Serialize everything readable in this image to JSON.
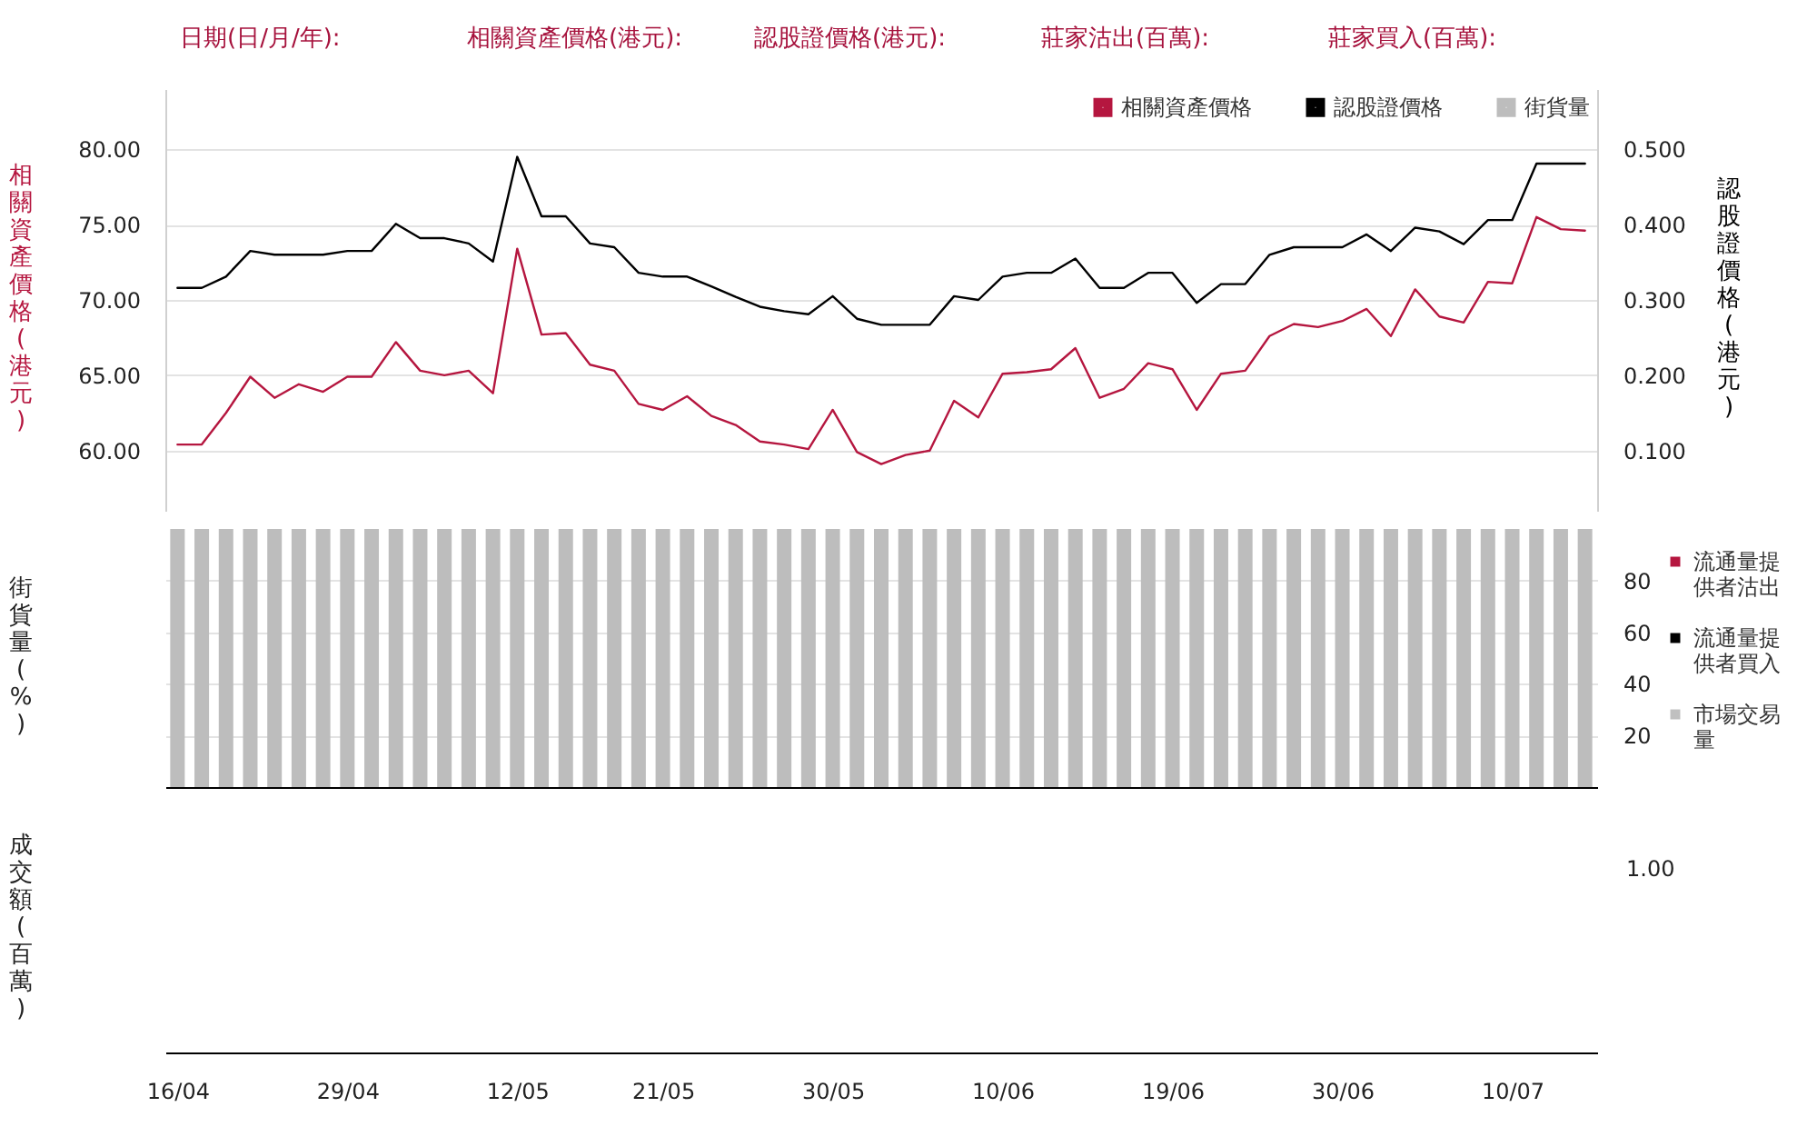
{
  "chart_data": [
    {
      "type": "line",
      "annotations": [
        "日期(日/月/年):",
        "相關資產價格(港元):",
        "認股證價格(港元):",
        "莊家沽出(百萬):",
        "莊家買入(百萬):"
      ],
      "categories": [
        null,
        null,
        null,
        null,
        null,
        null,
        null,
        null,
        null,
        null,
        null,
        null,
        null,
        null,
        null,
        null,
        null,
        null,
        null,
        null,
        null,
        null,
        null,
        null,
        null,
        null,
        null,
        null,
        null,
        null,
        null,
        null,
        null,
        null,
        null,
        null,
        null,
        null,
        null,
        null,
        null,
        null,
        null,
        null,
        null,
        null,
        null,
        null,
        null,
        null,
        null,
        null,
        null,
        null,
        null,
        null,
        null,
        null,
        null
      ],
      "series": [
        {
          "name": "相關資產價格",
          "color": "#b5163f",
          "values": [
            60.4,
            60.4,
            62.5,
            64.9,
            63.5,
            64.4,
            63.9,
            64.9,
            64.9,
            67.2,
            65.3,
            65.0,
            65.3,
            63.8,
            73.4,
            67.7,
            67.8,
            65.7,
            65.3,
            63.1,
            62.7,
            63.6,
            62.3,
            61.7,
            60.6,
            60.4,
            60.1,
            62.7,
            59.9,
            59.1,
            59.7,
            60.0,
            63.3,
            62.2,
            65.1,
            65.2,
            65.4,
            66.8,
            63.5,
            64.1,
            65.8,
            65.4,
            62.7,
            65.1,
            65.3,
            67.6,
            68.4,
            68.2,
            68.6,
            69.4,
            67.6,
            70.7,
            68.9,
            68.5,
            71.2,
            71.1,
            75.5,
            74.7,
            74.6
          ]
        },
        {
          "name": "認股證價格",
          "color": "#000000",
          "axis": "y2",
          "values": [
            0.316,
            0.316,
            0.331,
            0.365,
            0.36,
            0.36,
            0.36,
            0.365,
            0.365,
            0.401,
            0.382,
            0.382,
            0.375,
            0.351,
            0.49,
            0.411,
            0.411,
            0.375,
            0.37,
            0.336,
            0.331,
            0.331,
            0.318,
            0.304,
            0.291,
            0.285,
            0.281,
            0.305,
            0.275,
            0.267,
            0.267,
            0.267,
            0.305,
            0.3,
            0.331,
            0.336,
            0.336,
            0.355,
            0.316,
            0.316,
            0.336,
            0.336,
            0.296,
            0.321,
            0.321,
            0.36,
            0.37,
            0.37,
            0.37,
            0.387,
            0.365,
            0.396,
            0.391,
            0.374,
            0.406,
            0.406,
            0.481,
            0.481,
            0.481
          ]
        }
      ],
      "ylim": [
        56,
        84
      ],
      "yticks": [
        {
          "value": 60,
          "label": "60.00"
        },
        {
          "value": 65,
          "label": "65.00"
        },
        {
          "value": 70,
          "label": "70.00"
        },
        {
          "value": 75,
          "label": "75.00"
        },
        {
          "value": 80,
          "label": "80.00"
        }
      ],
      "y2lim": [
        0.02,
        0.58
      ],
      "y2ticks": [
        {
          "value": 0.1,
          "label": "0.100"
        },
        {
          "value": 0.2,
          "label": "0.200"
        },
        {
          "value": 0.3,
          "label": "0.300"
        },
        {
          "value": 0.4,
          "label": "0.400"
        },
        {
          "value": 0.5,
          "label": "0.500"
        }
      ],
      "ylabel": "相關資產價格(港元)",
      "y2label": "認股證價格(港元)",
      "grid": "y",
      "legend": "top right",
      "tick_labels": "y"
    },
    {
      "type": "bar",
      "categories": [
        null,
        null,
        null,
        null,
        null,
        null,
        null,
        null,
        null,
        null,
        null,
        null,
        null,
        null,
        null,
        null,
        null,
        null,
        null,
        null,
        null,
        null,
        null,
        null,
        null,
        null,
        null,
        null,
        null,
        null,
        null,
        null,
        null,
        null,
        null,
        null,
        null,
        null,
        null,
        null,
        null,
        null,
        null,
        null,
        null,
        null,
        null,
        null,
        null,
        null,
        null,
        null,
        null,
        null,
        null,
        null,
        null,
        null,
        null
      ],
      "series": [
        {
          "name": "街貨量",
          "color": "#bdbdbd",
          "values": [
            100,
            100,
            100,
            100,
            100,
            100,
            100,
            100,
            100,
            100,
            100,
            100,
            100,
            100,
            100,
            100,
            100,
            100,
            100,
            100,
            100,
            100,
            100,
            100,
            100,
            100,
            100,
            100,
            100,
            100,
            100,
            100,
            100,
            100,
            100,
            100,
            100,
            100,
            100,
            100,
            100,
            100,
            100,
            100,
            100,
            100,
            100,
            100,
            100,
            100,
            100,
            100,
            100,
            100,
            100,
            100,
            100,
            100,
            100
          ]
        }
      ],
      "ylim": [
        0,
        100
      ],
      "yticks": [
        20,
        40,
        60,
        80
      ],
      "ylabel": "街貨量(%)",
      "grid": "y",
      "tick_labels": "y"
    },
    {
      "type": "other",
      "categories": [
        "16/04",
        null,
        null,
        null,
        null,
        null,
        null,
        "29/04",
        null,
        null,
        null,
        null,
        null,
        null,
        "12/05",
        null,
        null,
        null,
        null,
        null,
        "21/05",
        null,
        null,
        null,
        null,
        null,
        null,
        "30/05",
        null,
        null,
        null,
        null,
        null,
        null,
        "10/06",
        null,
        null,
        null,
        null,
        null,
        null,
        "19/06",
        null,
        null,
        null,
        null,
        null,
        null,
        "30/06",
        null,
        null,
        null,
        null,
        null,
        null,
        "10/07",
        null,
        null,
        null
      ],
      "series": [
        {
          "name": "流通量提供者沽出",
          "color": "#b5163f",
          "values": [
            null,
            null,
            null,
            null,
            null,
            null,
            null,
            null,
            null,
            null,
            null,
            null,
            null,
            null,
            null,
            null,
            null,
            null,
            null,
            null,
            null,
            null,
            null,
            null,
            null,
            null,
            null,
            null,
            null,
            null,
            null,
            null,
            null,
            null,
            null,
            null,
            null,
            null,
            null,
            null,
            null,
            null,
            null,
            null,
            null,
            null,
            null,
            null,
            null,
            null,
            null,
            null,
            null,
            null,
            null,
            null,
            null,
            null,
            null
          ]
        },
        {
          "name": "流通量提供者買入",
          "color": "#000000",
          "values": [
            null,
            null,
            null,
            null,
            null,
            null,
            null,
            null,
            null,
            null,
            null,
            null,
            null,
            null,
            null,
            null,
            null,
            null,
            null,
            null,
            null,
            null,
            null,
            null,
            null,
            null,
            null,
            null,
            null,
            null,
            null,
            null,
            null,
            null,
            null,
            null,
            null,
            null,
            null,
            null,
            null,
            null,
            null,
            null,
            null,
            null,
            null,
            null,
            null,
            null,
            null,
            null,
            null,
            null,
            null,
            null,
            null,
            null,
            null
          ]
        },
        {
          "name": "市場交易量",
          "color": "#c0c0c0",
          "values": [
            null,
            null,
            null,
            null,
            null,
            null,
            null,
            null,
            null,
            null,
            null,
            null,
            null,
            null,
            null,
            null,
            null,
            null,
            null,
            null,
            null,
            null,
            null,
            null,
            null,
            null,
            null,
            null,
            null,
            null,
            null,
            null,
            null,
            null,
            null,
            null,
            null,
            null,
            null,
            null,
            null,
            null,
            null,
            null,
            null,
            null,
            null,
            null,
            null,
            null,
            null,
            null,
            null,
            null,
            null,
            null,
            null,
            null,
            null
          ]
        }
      ],
      "annotations": [
        "1.00"
      ],
      "ylabel": "成交額(百萬)",
      "legend": "right"
    }
  ]
}
